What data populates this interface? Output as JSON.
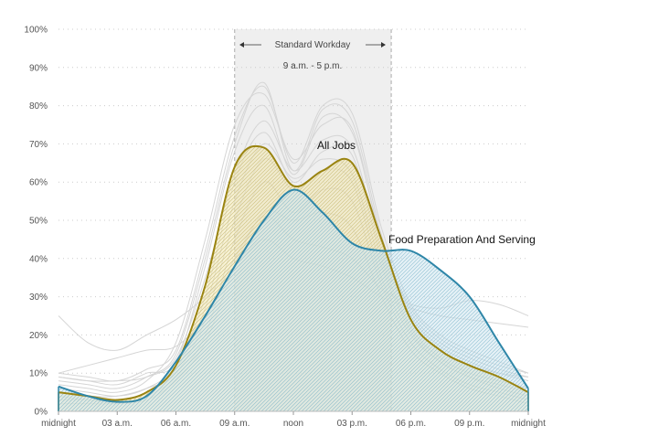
{
  "chart_data": {
    "type": "area",
    "xlabel": "",
    "ylabel": "",
    "x_unit": "hour of day",
    "xlim": [
      0,
      24
    ],
    "ylim": [
      0,
      100
    ],
    "x_ticks": [
      {
        "x": 0,
        "label": "midnight"
      },
      {
        "x": 3,
        "label": "03 a.m."
      },
      {
        "x": 6,
        "label": "06 a.m."
      },
      {
        "x": 9,
        "label": "09 a.m."
      },
      {
        "x": 12,
        "label": "noon"
      },
      {
        "x": 15,
        "label": "03 p.m."
      },
      {
        "x": 18,
        "label": "06 p.m."
      },
      {
        "x": 21,
        "label": "09 p.m."
      },
      {
        "x": 24,
        "label": "midnight"
      }
    ],
    "y_ticks": [
      {
        "y": 0,
        "label": "0%"
      },
      {
        "y": 10,
        "label": "10%"
      },
      {
        "y": 20,
        "label": "20%"
      },
      {
        "y": 30,
        "label": "30%"
      },
      {
        "y": 40,
        "label": "40%"
      },
      {
        "y": 50,
        "label": "50%"
      },
      {
        "y": 60,
        "label": "60%"
      },
      {
        "y": 70,
        "label": "70%"
      },
      {
        "y": 80,
        "label": "80%"
      },
      {
        "y": 90,
        "label": "90%"
      },
      {
        "y": 100,
        "label": "100%"
      }
    ],
    "grid": {
      "horizontal": true,
      "style": "dotted"
    },
    "highlight_band": {
      "x_start": 9,
      "x_end": 17,
      "title": "Standard Workday",
      "subtitle": "9 a.m. - 5 p.m."
    },
    "x": [
      0,
      1.5,
      3,
      4.5,
      6,
      7.5,
      9,
      10.5,
      12,
      13.5,
      15,
      16.5,
      18,
      19.5,
      21,
      22.5,
      24
    ],
    "series": [
      {
        "name": "All Jobs",
        "color": "#9a8411",
        "fill": "#f3e7b3",
        "values": [
          5,
          4,
          3,
          5,
          12,
          33,
          64,
          69,
          59,
          63,
          65,
          45,
          24,
          16,
          12,
          9,
          5
        ]
      },
      {
        "name": "Food Preparation And Serving",
        "color": "#2e86a8",
        "fill": "#cfe6ef",
        "values": [
          6.5,
          4,
          2.5,
          4,
          13,
          25,
          38,
          50,
          58,
          52,
          44,
          42,
          42,
          37,
          30,
          18,
          6
        ]
      }
    ],
    "background_series": [
      {
        "color": "#d5d5d5",
        "values": [
          10,
          9,
          8,
          11,
          16,
          42,
          72,
          85,
          65,
          80,
          78,
          48,
          28,
          20,
          16,
          13,
          10
        ]
      },
      {
        "color": "#d5d5d5",
        "values": [
          8,
          7,
          6,
          9,
          15,
          40,
          70,
          86,
          63,
          79,
          76,
          46,
          26,
          18,
          14,
          11,
          9
        ]
      },
      {
        "color": "#d5d5d5",
        "values": [
          7,
          6,
          5,
          8,
          18,
          45,
          75,
          83,
          66,
          75,
          74,
          44,
          25,
          17,
          13,
          10,
          8
        ]
      },
      {
        "color": "#d5d5d5",
        "values": [
          9,
          8,
          7,
          10,
          13,
          38,
          68,
          80,
          62,
          77,
          73,
          45,
          27,
          19,
          15,
          12,
          10
        ]
      },
      {
        "color": "#d5d5d5",
        "values": [
          6,
          5,
          4,
          6,
          12,
          30,
          60,
          73,
          60,
          68,
          67,
          40,
          22,
          14,
          10,
          8,
          6
        ]
      },
      {
        "color": "#d5d5d5",
        "values": [
          5,
          4,
          4,
          6,
          10,
          24,
          50,
          66,
          58,
          63,
          60,
          35,
          20,
          13,
          9,
          7,
          5
        ]
      },
      {
        "color": "#d5d5d5",
        "values": [
          4,
          3,
          3,
          5,
          11,
          27,
          55,
          70,
          61,
          66,
          62,
          38,
          21,
          13,
          9,
          6,
          4
        ]
      },
      {
        "color": "#d5d5d5",
        "values": [
          3,
          3,
          2,
          4,
          9,
          20,
          45,
          60,
          52,
          58,
          55,
          33,
          18,
          11,
          7,
          5,
          3
        ]
      },
      {
        "color": "#d5d5d5",
        "values": [
          2,
          2,
          2,
          3,
          8,
          18,
          38,
          52,
          50,
          52,
          48,
          30,
          16,
          10,
          6,
          4,
          2
        ]
      },
      {
        "color": "#d5d5d5",
        "values": [
          10,
          12,
          14,
          16,
          17,
          25,
          40,
          51,
          45,
          43,
          40,
          32,
          28,
          27,
          29,
          28,
          25
        ]
      },
      {
        "color": "#d5d5d5",
        "values": [
          25,
          18,
          16,
          20,
          24,
          30,
          38,
          45,
          40,
          38,
          35,
          30,
          27,
          25,
          24,
          23,
          22
        ]
      },
      {
        "color": "#d5d5d5",
        "values": [
          9,
          8,
          8,
          9,
          14,
          35,
          62,
          76,
          63,
          71,
          69,
          42,
          24,
          16,
          12,
          10,
          9
        ]
      }
    ]
  }
}
